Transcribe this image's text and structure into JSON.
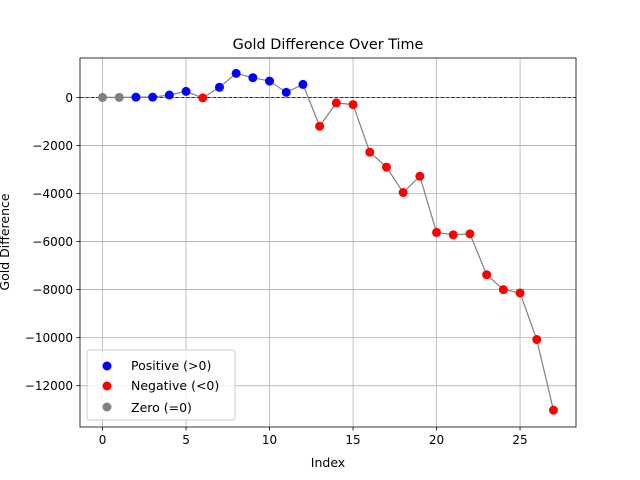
{
  "chart_data": {
    "type": "scatter",
    "title": "Gold Difference Over Time",
    "xlabel": "Index",
    "ylabel": "Gold Difference",
    "xlim": [
      -1.35,
      28.35
    ],
    "ylim": [
      -13720,
      1640
    ],
    "xticks": [
      0,
      5,
      10,
      15,
      20,
      25
    ],
    "yticks": [
      0,
      -2000,
      -4000,
      -6000,
      -8000,
      -10000,
      -12000
    ],
    "ytick_labels": [
      "0",
      "−2000",
      "−4000",
      "−6000",
      "−8000",
      "−10000",
      "−12000"
    ],
    "grid": true,
    "zero_line": {
      "value": 0,
      "style": "dashed",
      "color": "#000000"
    },
    "connecting_line_color": "#808080",
    "legend_position": "lower-left",
    "series": [
      {
        "name": "Positive (>0)",
        "color": "#0000ff"
      },
      {
        "name": "Negative (<0)",
        "color": "#ff0000"
      },
      {
        "name": "Zero (=0)",
        "color": "#808080"
      }
    ],
    "x": [
      0,
      1,
      2,
      3,
      4,
      5,
      6,
      7,
      8,
      9,
      10,
      11,
      12,
      13,
      14,
      15,
      16,
      17,
      18,
      19,
      20,
      21,
      22,
      23,
      24,
      25,
      26,
      27
    ],
    "values": [
      0,
      0,
      10,
      10,
      100,
      250,
      -20,
      420,
      1000,
      820,
      680,
      210,
      540,
      -1200,
      -230,
      -300,
      -2280,
      -2900,
      -3960,
      -3280,
      -5620,
      -5720,
      -5680,
      -7380,
      -8000,
      -8140,
      -10080,
      -13020
    ]
  }
}
